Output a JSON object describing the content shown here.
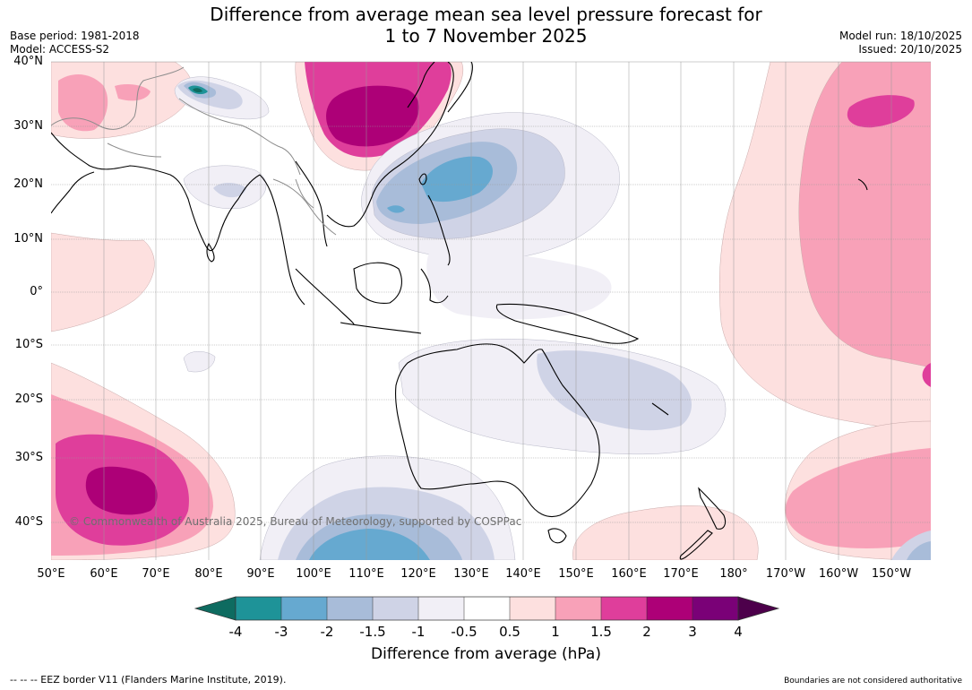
{
  "title_line1": "Difference from average mean sea level pressure forecast for",
  "title_line2": "1 to 7 November 2025",
  "meta_left": {
    "base_period": "Base period: 1981-2018",
    "model": "Model: ACCESS-S2"
  },
  "meta_right": {
    "model_run": "Model run: 18/10/2025",
    "issued": "Issued: 20/10/2025"
  },
  "lat_labels": [
    "40°N",
    "30°N",
    "20°N",
    "10°N",
    "0°",
    "10°S",
    "20°S",
    "30°S",
    "40°S"
  ],
  "lon_labels": [
    "50°E",
    "60°E",
    "70°E",
    "80°E",
    "90°E",
    "100°E",
    "110°E",
    "120°E",
    "130°E",
    "140°E",
    "150°E",
    "160°E",
    "170°E",
    "180°",
    "170°W",
    "160°W",
    "150°W"
  ],
  "copyright": "© Commonwealth of Australia 2025, Bureau of Meteorology, supported by COSPPac",
  "colorbar": {
    "ticks": [
      "-4",
      "-3",
      "-2",
      "-1.5",
      "-1",
      "-0.5",
      "0.5",
      "1",
      "1.5",
      "2",
      "3",
      "4"
    ],
    "colors": [
      "#0e6b60",
      "#1e9398",
      "#66a9d0",
      "#a8bcd9",
      "#cfd3e6",
      "#f1eff6",
      "#ffffff",
      "#fde0df",
      "#f8a1b8",
      "#df3e9b",
      "#ad0077",
      "#7a0177",
      "#4d004b"
    ],
    "label": "Difference from average (hPa)"
  },
  "footer_left": "-- -- -- EEZ border V11 (Flanders Marine Institute, 2019).",
  "footer_right": "Boundaries are not considered authoritative"
}
